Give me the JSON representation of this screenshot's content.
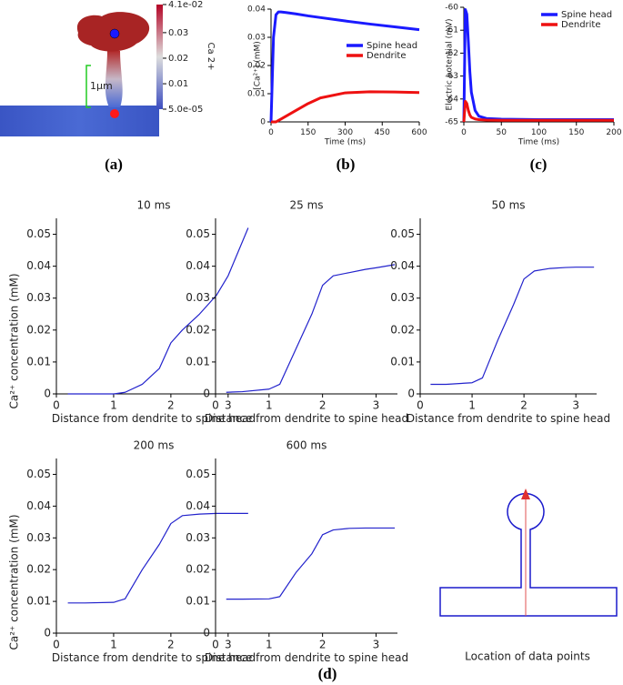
{
  "figure_a": {
    "label": "(a)",
    "scale_label": "1µm",
    "colorbar": {
      "title": "Ca 2+",
      "lim": [
        5e-05,
        0.041
      ],
      "ticks": [
        {
          "value": 0.041,
          "label": "4.1e-02"
        },
        0.03,
        0.02,
        0.01,
        {
          "value": 5e-05,
          "label": "5.0e-05"
        }
      ]
    }
  },
  "panel_labels": {
    "b": "(b)",
    "c": "(c)",
    "d": "(d)"
  },
  "schematic_caption": "Location of data points",
  "chart_data": [
    {
      "type": "line",
      "xlabel": "Time (ms)",
      "ylabel": "[Ca²⁺] (mM)",
      "legend": "center right",
      "x": [
        0,
        10,
        20,
        30,
        40,
        60,
        100,
        150,
        200,
        300,
        400,
        500,
        600
      ],
      "series": [
        {
          "name": "Spine head",
          "color": "#1a1aff",
          "values": [
            0,
            0.03,
            0.038,
            0.039,
            0.039,
            0.0388,
            0.0383,
            0.0376,
            0.037,
            0.0358,
            0.0347,
            0.0337,
            0.0327
          ]
        },
        {
          "name": "Dendrite",
          "color": "#ee1111",
          "values": [
            0,
            0,
            0,
            0.0005,
            0.001,
            0.002,
            0.004,
            0.0065,
            0.0085,
            0.0103,
            0.0107,
            0.0106,
            0.0104
          ]
        }
      ],
      "xlim": [
        0,
        600
      ],
      "xticks": [
        0,
        150,
        300,
        450,
        600
      ],
      "ylim": [
        0,
        0.04
      ],
      "yticks": [
        0,
        0.01,
        0.02,
        0.03,
        0.04
      ]
    },
    {
      "type": "line",
      "xlabel": "Time (ms)",
      "ylabel": "Electric potential (mV)",
      "legend": "upper right",
      "x": [
        0,
        2,
        4,
        6,
        8,
        10,
        15,
        20,
        30,
        50,
        100,
        150,
        200
      ],
      "series": [
        {
          "name": "Spine head",
          "color": "#1a1aff",
          "values": [
            -65,
            -60.1,
            -60.3,
            -61.5,
            -62.8,
            -63.7,
            -64.5,
            -64.75,
            -64.85,
            -64.88,
            -64.9,
            -64.9,
            -64.9
          ]
        },
        {
          "name": "Dendrite",
          "color": "#ee1111",
          "values": [
            -65,
            -64.1,
            -64.2,
            -64.5,
            -64.7,
            -64.8,
            -64.87,
            -64.9,
            -64.92,
            -64.93,
            -64.93,
            -64.93,
            -64.93
          ]
        }
      ],
      "xlim": [
        0,
        200
      ],
      "xticks": [
        0,
        50,
        100,
        150,
        200
      ],
      "ylim": [
        -65,
        -60
      ],
      "yticks": [
        -65,
        -64,
        -63,
        -62,
        -61,
        -60
      ]
    },
    {
      "type": "line",
      "title": "10 ms",
      "xlabel": "Distance from dendrite to spine head",
      "ylabel": "Ca²⁺ concentration (mM)",
      "color": "#2222cc",
      "x": [
        0.2,
        0.5,
        1.0,
        1.2,
        1.5,
        1.8,
        2.0,
        2.2,
        2.5,
        2.8,
        3.0,
        3.35
      ],
      "values": [
        0,
        0,
        0,
        0.0005,
        0.003,
        0.008,
        0.016,
        0.02,
        0.025,
        0.031,
        0.037,
        0.052
      ],
      "xlim": [
        0,
        3.4
      ],
      "xticks": [
        0,
        1,
        2,
        3
      ],
      "ylim": [
        0,
        0.055
      ],
      "yticks": [
        0,
        0.01,
        0.02,
        0.03,
        0.04,
        0.05
      ]
    },
    {
      "type": "line",
      "title": "25 ms",
      "xlabel": "Distance from dendrite to spine head",
      "color": "#2222cc",
      "x": [
        0.2,
        0.5,
        1.0,
        1.2,
        1.5,
        1.8,
        2.0,
        2.2,
        2.5,
        2.8,
        3.0,
        3.35
      ],
      "values": [
        0.0005,
        0.0007,
        0.0015,
        0.003,
        0.014,
        0.025,
        0.034,
        0.037,
        0.038,
        0.039,
        0.0395,
        0.0405
      ],
      "xlim": [
        0,
        3.4
      ],
      "xticks": [
        0,
        1,
        2,
        3
      ],
      "ylim": [
        0,
        0.055
      ],
      "yticks": [
        0,
        0.01,
        0.02,
        0.03,
        0.04,
        0.05
      ]
    },
    {
      "type": "line",
      "title": "50 ms",
      "xlabel": "Distance from dendrite to spine head",
      "color": "#2222cc",
      "x": [
        0.2,
        0.5,
        1.0,
        1.2,
        1.5,
        1.8,
        2.0,
        2.2,
        2.5,
        2.8,
        3.0,
        3.35
      ],
      "values": [
        0.003,
        0.003,
        0.0035,
        0.005,
        0.017,
        0.028,
        0.036,
        0.0385,
        0.0393,
        0.0396,
        0.0397,
        0.0397
      ],
      "xlim": [
        0,
        3.4
      ],
      "xticks": [
        0,
        1,
        2,
        3
      ],
      "ylim": [
        0,
        0.055
      ],
      "yticks": [
        0,
        0.01,
        0.02,
        0.03,
        0.04,
        0.05
      ]
    },
    {
      "type": "line",
      "title": "200 ms",
      "xlabel": "Distance from dendrite to spine head",
      "ylabel": "Ca²⁺ concentration (mM)",
      "color": "#2222cc",
      "x": [
        0.2,
        0.5,
        1.0,
        1.2,
        1.5,
        1.8,
        2.0,
        2.2,
        2.5,
        2.8,
        3.0,
        3.35
      ],
      "values": [
        0.0095,
        0.0095,
        0.0097,
        0.0108,
        0.02,
        0.028,
        0.0345,
        0.037,
        0.0375,
        0.0377,
        0.0377,
        0.0377
      ],
      "xlim": [
        0,
        3.4
      ],
      "xticks": [
        0,
        1,
        2,
        3
      ],
      "ylim": [
        0,
        0.055
      ],
      "yticks": [
        0,
        0.01,
        0.02,
        0.03,
        0.04,
        0.05
      ]
    },
    {
      "type": "line",
      "title": "600 ms",
      "xlabel": "Distance from dendrite to spine head",
      "color": "#2222cc",
      "x": [
        0.2,
        0.5,
        1.0,
        1.2,
        1.5,
        1.8,
        2.0,
        2.2,
        2.5,
        2.8,
        3.0,
        3.35
      ],
      "values": [
        0.0107,
        0.0107,
        0.0108,
        0.0115,
        0.019,
        0.025,
        0.031,
        0.0325,
        0.033,
        0.0331,
        0.0331,
        0.0331
      ],
      "xlim": [
        0,
        3.4
      ],
      "xticks": [
        0,
        1,
        2,
        3
      ],
      "ylim": [
        0,
        0.055
      ],
      "yticks": [
        0,
        0.01,
        0.02,
        0.03,
        0.04,
        0.05
      ]
    }
  ]
}
